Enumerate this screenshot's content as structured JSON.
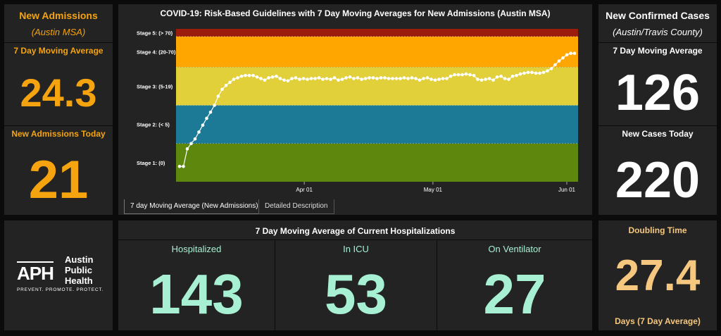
{
  "left": {
    "title": "New Admissions",
    "subtitle": "(Austin MSA)",
    "avg_label": "7 Day Moving Average",
    "avg_value": "24.3",
    "today_label": "New Admissions Today",
    "today_value": "21"
  },
  "right": {
    "title": "New Confirmed Cases",
    "subtitle": "(Austin/Travis County)",
    "avg_label": "7 Day Moving Average",
    "avg_value": "126",
    "today_label": "New Cases Today",
    "today_value": "220"
  },
  "logo": {
    "mark": "APH",
    "line1": "Austin",
    "line2": "Public",
    "line3": "Health",
    "tagline": "PREVENT. PROMOTE. PROTECT."
  },
  "hosp": {
    "title": "7 Day Moving Average of Current Hospitalizations",
    "cols": [
      {
        "label": "Hospitalized",
        "value": "143"
      },
      {
        "label": "In ICU",
        "value": "53"
      },
      {
        "label": "On Ventilator",
        "value": "27"
      }
    ]
  },
  "doubling": {
    "title": "Doubling Time",
    "value": "27.4",
    "caption": "Days (7 Day Average)"
  },
  "tabs": [
    "7 day Moving Average (New Admissions)",
    "Detailed Description"
  ],
  "colors": {
    "stage1": "#5e870d",
    "stage2": "#1c7a96",
    "stage3": "#e1d03a",
    "stage4": "#ffa600",
    "stage5": "#9b1b0d",
    "orange_text": "#f5a30f",
    "mint_text": "#a8f0d4",
    "sand_text": "#f6c77e"
  },
  "chart_data": {
    "type": "line",
    "title": "COVID-19: Risk-Based Guidelines with 7 Day Moving Averages for New Admissions (Austin MSA)",
    "xlabel": "",
    "ylabel": "",
    "x_ticks": [
      "Apr 01",
      "May 01",
      "Jun 01"
    ],
    "bands": [
      {
        "label": "Stage 1: (0)",
        "from": 0,
        "to": 5
      },
      {
        "label": "Stage 2: (< 5)",
        "from": 5,
        "to": 10
      },
      {
        "label": "Stage 3: (5-19)",
        "from": 10,
        "to": 15
      },
      {
        "label": "Stage 4: (20-70)",
        "from": 15,
        "to": 19
      },
      {
        "label": "Stage 5: (> 70)",
        "from": 19,
        "to": 20
      }
    ],
    "ylim": [
      0,
      20
    ],
    "series": [
      {
        "values": [
          2.0,
          2.0,
          4.3,
          5.0,
          5.6,
          6.5,
          7.4,
          8.3,
          9.1,
          10.0,
          11.2,
          12.1,
          12.6,
          13.0,
          13.4,
          13.6,
          13.8,
          13.9,
          13.9,
          13.9,
          13.7,
          13.5,
          13.3,
          13.6,
          13.7,
          13.8,
          13.5,
          13.3,
          13.2,
          13.5,
          13.6,
          13.4,
          13.5,
          13.4,
          13.5,
          13.5,
          13.6,
          13.4,
          13.5,
          13.4,
          13.6,
          13.3,
          13.4,
          13.6,
          13.7,
          13.5,
          13.6,
          13.4,
          13.5,
          13.6,
          13.6,
          13.5,
          13.6,
          13.6,
          13.5,
          13.5,
          13.5,
          13.5,
          13.6,
          13.5,
          13.6,
          13.5,
          13.3,
          13.5,
          13.6,
          13.4,
          13.3,
          13.4,
          13.5,
          13.5,
          13.8,
          14.0,
          14.0,
          14.0,
          14.1,
          14.0,
          13.9,
          13.4,
          13.3,
          13.4,
          13.5,
          13.3,
          13.7,
          13.8,
          13.5,
          13.4,
          13.8,
          13.9,
          14.1,
          14.2,
          14.3,
          14.3,
          14.2,
          14.2,
          14.3,
          14.5,
          14.8,
          15.3,
          15.8,
          16.2,
          16.6,
          16.8,
          16.8
        ]
      }
    ],
    "grid": false
  }
}
